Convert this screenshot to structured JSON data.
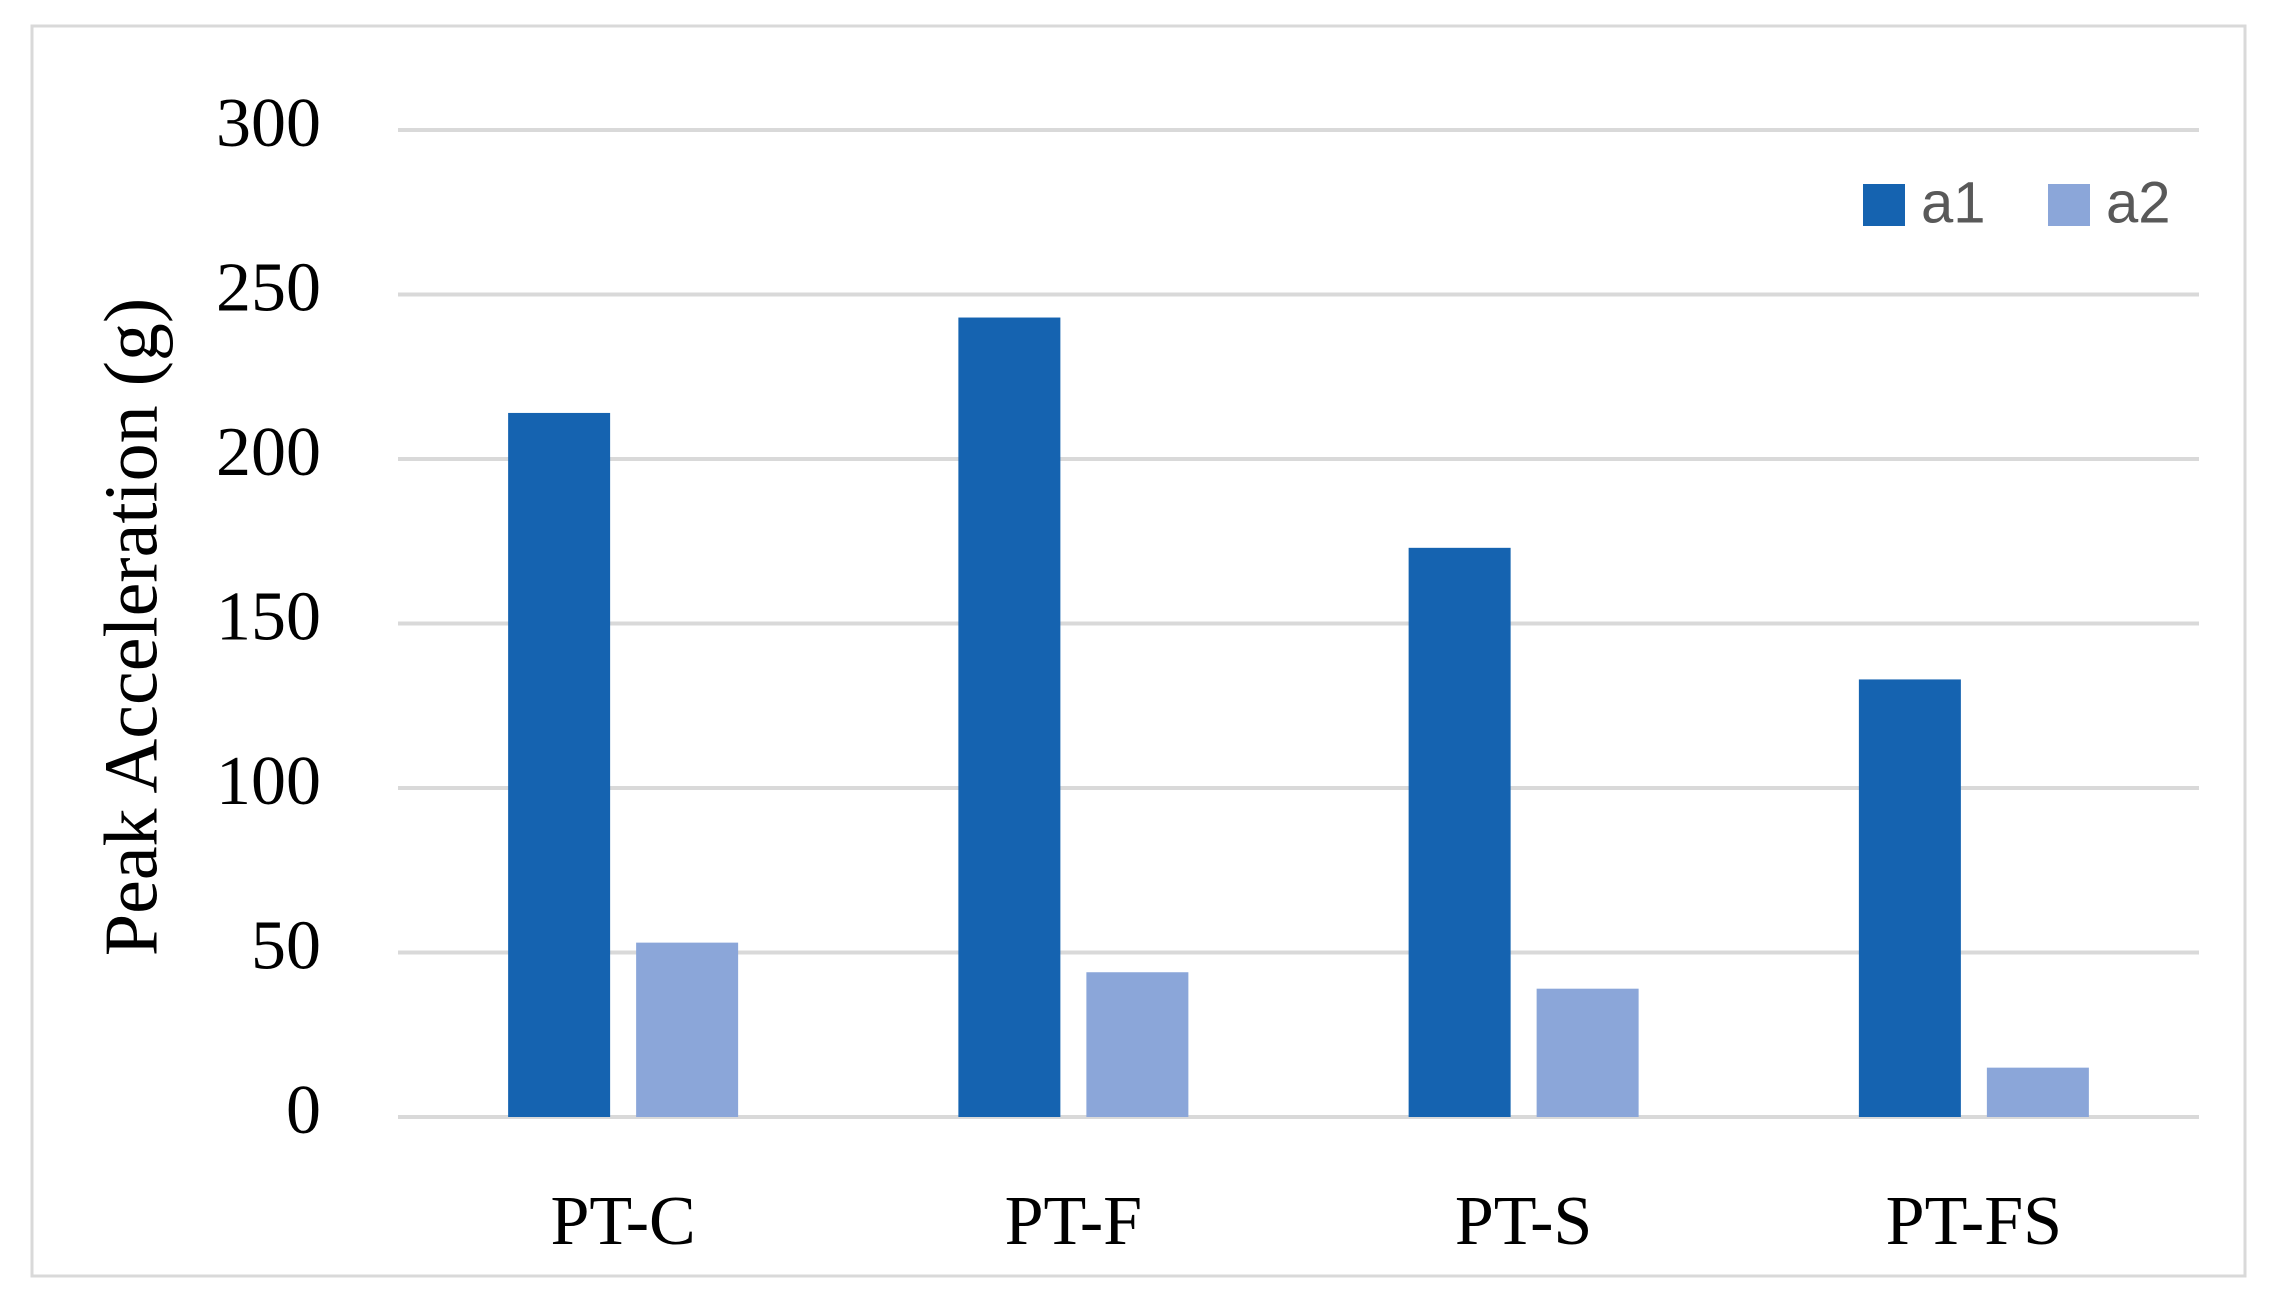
{
  "chart_data": {
    "type": "bar",
    "y_label": "Peak Acceleration (g)",
    "categories": [
      "PT-C",
      "PT-F",
      "PT-S",
      "PT-FS"
    ],
    "series": [
      {
        "name": "a1",
        "color": "#1563b0",
        "values": [
          214,
          243,
          173,
          133
        ]
      },
      {
        "name": "a2",
        "color": "#8ba6d9",
        "values": [
          53,
          44,
          39,
          15
        ]
      }
    ],
    "ylim": [
      0,
      300
    ],
    "yticks": [
      0,
      50,
      100,
      150,
      200,
      250,
      300
    ],
    "grid": true,
    "legend": "top-right"
  }
}
